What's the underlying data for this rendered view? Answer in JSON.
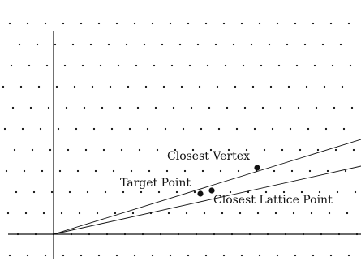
{
  "diagram": {
    "labels": {
      "closest_vertex": "Closest Vertex",
      "target_point": "Target Point",
      "closest_lattice_point": "Closest Lattice Point"
    },
    "colors": {
      "ink": "#111111",
      "background": "#ffffff"
    }
  }
}
